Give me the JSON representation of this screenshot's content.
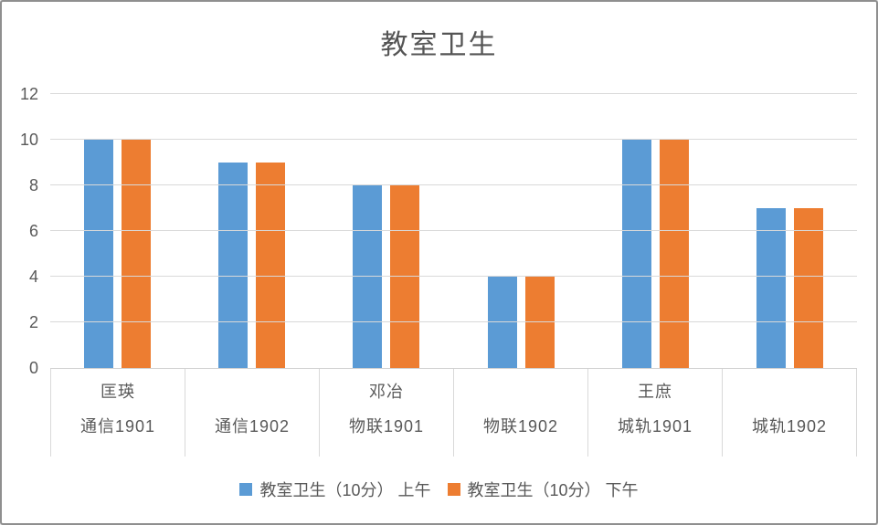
{
  "chart_data": {
    "type": "bar",
    "title": "教室卫生",
    "categories": [
      {
        "group": "匡瑛",
        "label": "通信1901"
      },
      {
        "group": "",
        "label": "通信1902"
      },
      {
        "group": "邓冶",
        "label": "物联1901"
      },
      {
        "group": "",
        "label": "物联1902"
      },
      {
        "group": "王庶",
        "label": "城轨1901"
      },
      {
        "group": "",
        "label": "城轨1902"
      }
    ],
    "series": [
      {
        "name": "教室卫生（10分） 上午",
        "color": "#5B9BD5",
        "values": [
          10,
          9,
          8,
          4,
          10,
          7
        ]
      },
      {
        "name": "教室卫生（10分） 下午",
        "color": "#ED7D31",
        "values": [
          10,
          9,
          8,
          4,
          10,
          7
        ]
      }
    ],
    "yticks": [
      0,
      2,
      4,
      6,
      8,
      10,
      12
    ],
    "ylim": [
      0,
      12
    ],
    "grid": true,
    "legend_position": "bottom",
    "colors": {
      "grid": "#D9D9D9",
      "axis_text": "#595959",
      "title_text": "#555555"
    }
  }
}
